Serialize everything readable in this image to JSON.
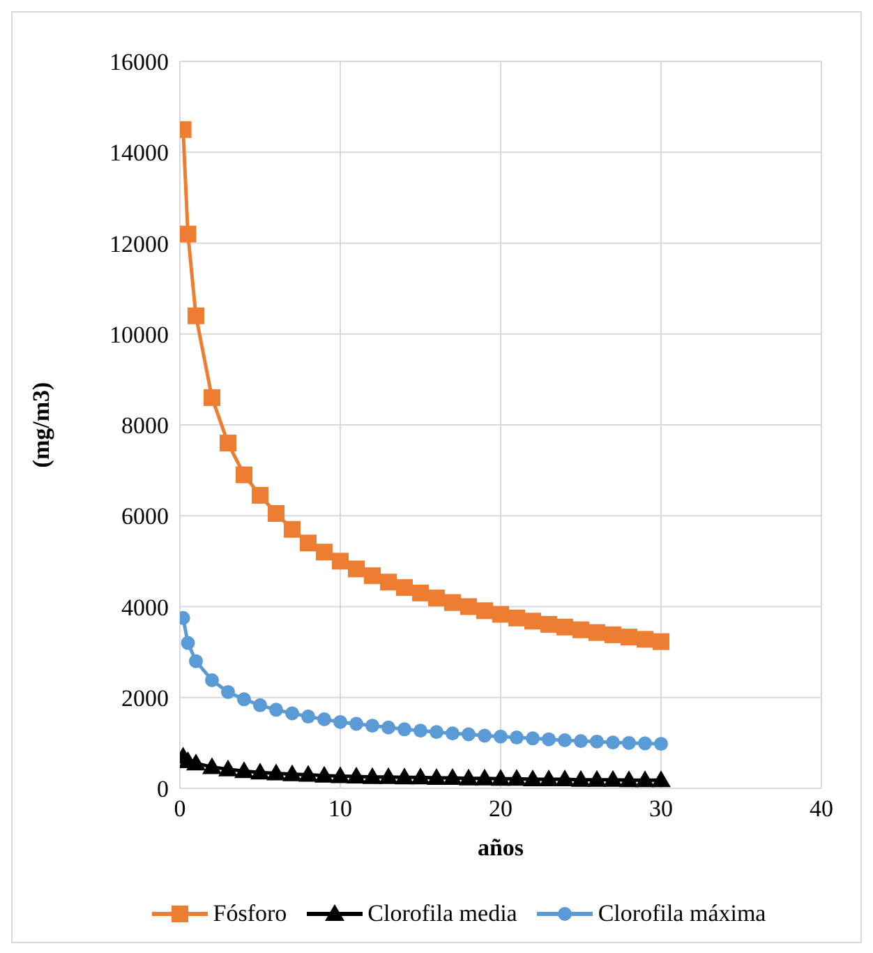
{
  "chart_data": {
    "type": "line",
    "xlabel": "años",
    "ylabel": "(mg/m3)",
    "x": [
      0.2,
      0.5,
      1,
      2,
      3,
      4,
      5,
      6,
      7,
      8,
      9,
      10,
      11,
      12,
      13,
      14,
      15,
      16,
      17,
      18,
      19,
      20,
      21,
      22,
      23,
      24,
      25,
      26,
      27,
      28,
      29,
      30
    ],
    "series": [
      {
        "name": "Fósforo",
        "color": "#ed7d31",
        "marker": "square",
        "values": [
          14500,
          12200,
          10400,
          8600,
          7600,
          6900,
          6450,
          6050,
          5700,
          5400,
          5200,
          5000,
          4830,
          4680,
          4540,
          4420,
          4300,
          4190,
          4090,
          4000,
          3910,
          3830,
          3750,
          3680,
          3610,
          3550,
          3490,
          3430,
          3380,
          3330,
          3280,
          3230
        ]
      },
      {
        "name": "Clorofila media",
        "color": "#000000",
        "marker": "triangle",
        "values": [
          700,
          600,
          550,
          470,
          420,
          380,
          350,
          330,
          310,
          300,
          280,
          270,
          260,
          250,
          250,
          240,
          240,
          230,
          230,
          220,
          220,
          210,
          210,
          200,
          200,
          200,
          190,
          190,
          190,
          180,
          180,
          180
        ]
      },
      {
        "name": "Clorofila máxima",
        "color": "#5b9bd5",
        "marker": "circle",
        "values": [
          3750,
          3200,
          2800,
          2380,
          2120,
          1960,
          1830,
          1730,
          1650,
          1580,
          1520,
          1460,
          1420,
          1380,
          1340,
          1300,
          1270,
          1240,
          1210,
          1190,
          1160,
          1140,
          1120,
          1100,
          1080,
          1060,
          1040,
          1030,
          1010,
          1000,
          990,
          980
        ]
      }
    ],
    "xlim": [
      0,
      40
    ],
    "xticks": [
      0,
      10,
      20,
      30,
      40
    ],
    "ylim": [
      0,
      16000
    ],
    "yticks": [
      0,
      2000,
      4000,
      6000,
      8000,
      10000,
      12000,
      14000,
      16000
    ],
    "grid": true,
    "legend": "bottom"
  }
}
